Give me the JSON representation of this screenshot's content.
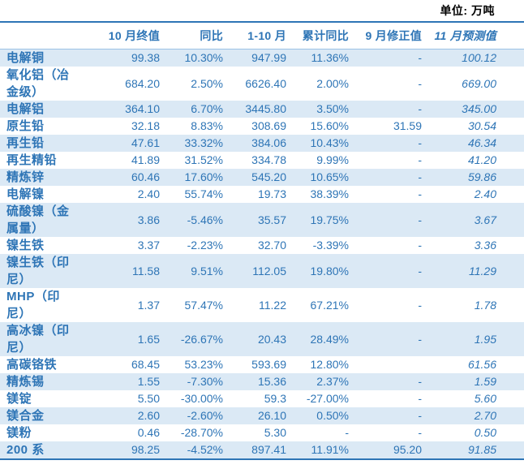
{
  "unit_label": "单位: 万吨",
  "colors": {
    "accent_blue": "#2E75B6",
    "row_stripe": "#DBE9F5",
    "header_rule": "#9CC2E5",
    "unit_text": "#000000"
  },
  "chart_data": {
    "type": "table",
    "title": "",
    "unit": "万吨",
    "columns": [
      "10 月终值",
      "同比",
      "1-10 月",
      "累计同比",
      "9 月修正值",
      "11 月预测值"
    ],
    "rows": [
      {
        "label": "电解铜",
        "values": [
          "99.38",
          "10.30%",
          "947.99",
          "11.36%",
          "-",
          "100.12"
        ]
      },
      {
        "label": "氧化铝（冶\n金级）",
        "values": [
          "684.20",
          "2.50%",
          "6626.40",
          "2.00%",
          "-",
          "669.00"
        ]
      },
      {
        "label": "电解铝",
        "values": [
          "364.10",
          "6.70%",
          "3445.80",
          "3.50%",
          "-",
          "345.00"
        ]
      },
      {
        "label": "原生铅",
        "values": [
          "32.18",
          "8.83%",
          "308.69",
          "15.60%",
          "31.59",
          "30.54"
        ]
      },
      {
        "label": "再生铅",
        "values": [
          "47.61",
          "33.32%",
          "384.06",
          "10.43%",
          "-",
          "46.34"
        ]
      },
      {
        "label": "再生精铅",
        "values": [
          "41.89",
          "31.52%",
          "334.78",
          "9.99%",
          "-",
          "41.20"
        ]
      },
      {
        "label": "精炼锌",
        "values": [
          "60.46",
          "17.60%",
          "545.20",
          "10.65%",
          "-",
          "59.86"
        ]
      },
      {
        "label": "电解镍",
        "values": [
          "2.40",
          "55.74%",
          "19.73",
          "38.39%",
          "-",
          "2.40"
        ]
      },
      {
        "label": "硫酸镍（金\n属量）",
        "values": [
          "3.86",
          "-5.46%",
          "35.57",
          "19.75%",
          "-",
          "3.67"
        ]
      },
      {
        "label": "镍生铁",
        "values": [
          "3.37",
          "-2.23%",
          "32.70",
          "-3.39%",
          "-",
          "3.36"
        ]
      },
      {
        "label": "镍生铁（印\n尼）",
        "values": [
          "11.58",
          "9.51%",
          "112.05",
          "19.80%",
          "-",
          "11.29"
        ]
      },
      {
        "label": "MHP（印\n尼）",
        "values": [
          "1.37",
          "57.47%",
          "11.22",
          "67.21%",
          "-",
          "1.78"
        ]
      },
      {
        "label": "高冰镍（印\n尼）",
        "values": [
          "1.65",
          "-26.67%",
          "20.43",
          "28.49%",
          "-",
          "1.95"
        ]
      },
      {
        "label": "高碳铬铁",
        "values": [
          "68.45",
          "53.23%",
          "593.69",
          "12.80%",
          "",
          "61.56"
        ]
      },
      {
        "label": "精炼锡",
        "values": [
          "1.55",
          "-7.30%",
          "15.36",
          "2.37%",
          "-",
          "1.59"
        ]
      },
      {
        "label": "镁锭",
        "values": [
          "5.50",
          "-30.00%",
          "59.3",
          "-27.00%",
          "-",
          "5.60"
        ]
      },
      {
        "label": "镁合金",
        "values": [
          "2.60",
          "-2.60%",
          "26.10",
          "0.50%",
          "-",
          "2.70"
        ]
      },
      {
        "label": "镁粉",
        "values": [
          "0.46",
          "-28.70%",
          "5.30",
          "-",
          "-",
          "0.50"
        ]
      },
      {
        "label": "200 系",
        "values": [
          "98.25",
          "-4.52%",
          "897.41",
          "11.91%",
          "95.20",
          "91.85"
        ]
      }
    ]
  }
}
